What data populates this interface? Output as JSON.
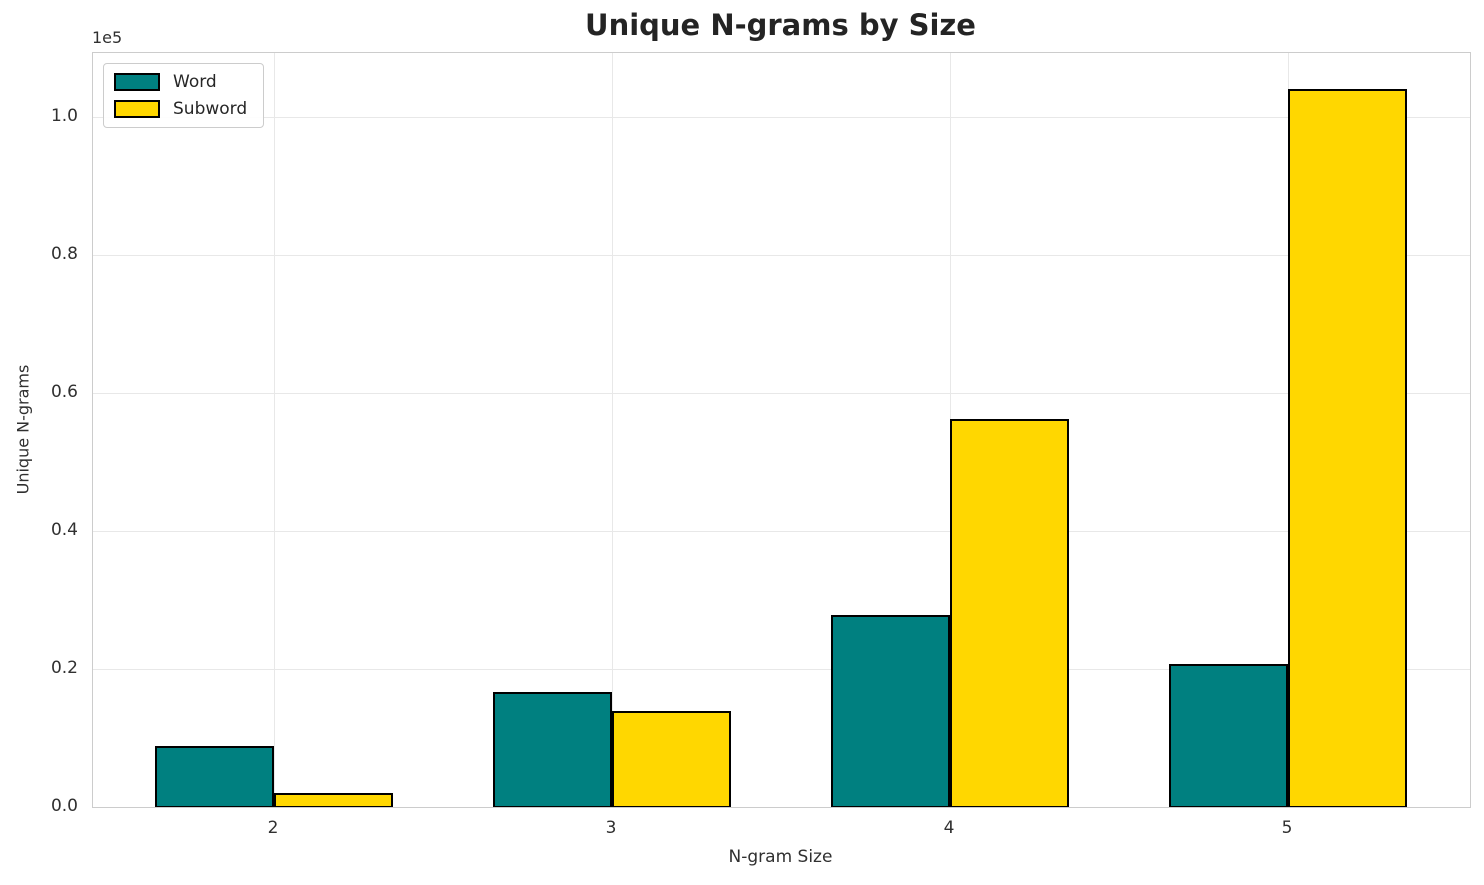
{
  "chart_data": {
    "type": "bar",
    "title": "Unique N-grams by Size",
    "xlabel": "N-gram Size",
    "ylabel": "Unique N-grams",
    "y_offset_text": "1e5",
    "categories": [
      "2",
      "3",
      "4",
      "5"
    ],
    "series": [
      {
        "name": "Word",
        "color": "#008080",
        "values": [
          8800,
          16600,
          27800,
          20700
        ]
      },
      {
        "name": "Subword",
        "color": "#FFD700",
        "values": [
          2000,
          13900,
          56200,
          104000
        ]
      }
    ],
    "bar_edge_color": "#000000",
    "ylim": [
      0,
      109300
    ],
    "yticks": [
      0.0,
      0.2,
      0.4,
      0.6,
      0.8,
      1.0
    ],
    "ytick_labels": [
      "0.0",
      "0.2",
      "0.4",
      "0.6",
      "0.8",
      "1.0"
    ],
    "y_tick_scale": 100000,
    "grid": true,
    "legend_position": "upper-left",
    "colors": {
      "grid": "#e8e8e8",
      "spine": "#cccccc",
      "text": "#303030",
      "title_text": "#242424"
    }
  }
}
